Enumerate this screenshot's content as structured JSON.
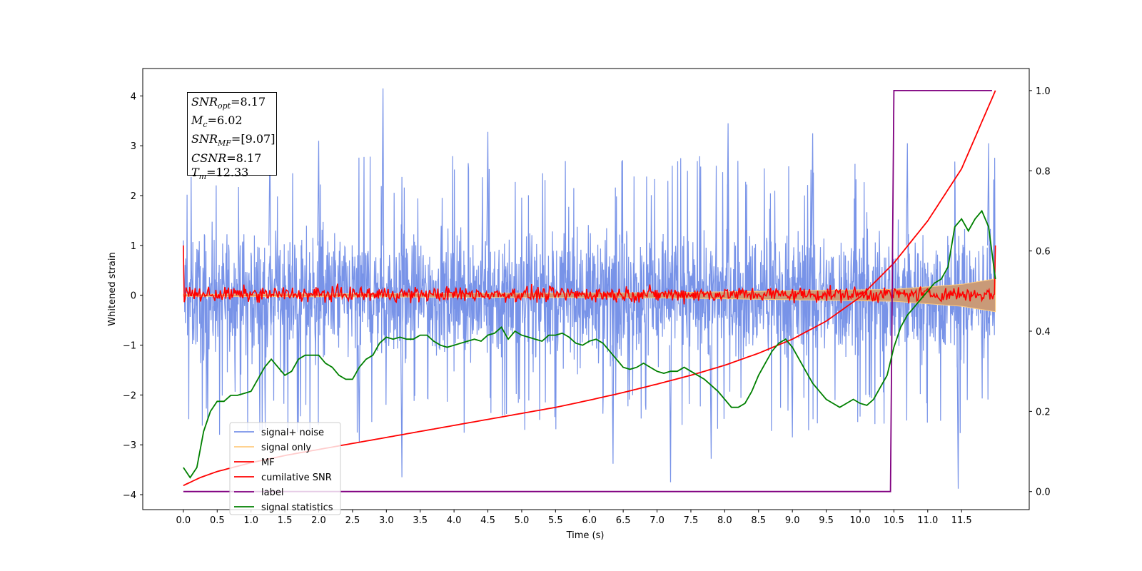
{
  "info_box": [
    {
      "sym": "SNR",
      "sub": "opt",
      "val": "=8.17"
    },
    {
      "sym": "M",
      "sub": "c",
      "val": "=6.02"
    },
    {
      "sym": "SNR",
      "sub": "MF",
      "val": "=[9.07]"
    },
    {
      "sym": "CSNR",
      "sub": "",
      "val": "=8.17"
    },
    {
      "sym": "T",
      "sub": "m",
      "val": "=12.33"
    }
  ],
  "chart_data": {
    "type": "line",
    "xlabel": "Time (s)",
    "ylabel": "Whitened strain",
    "xlim": [
      -0.6,
      12.5
    ],
    "ylim": [
      -4.3,
      4.55
    ],
    "y2lim": [
      -0.045,
      1.055
    ],
    "xticks": [
      "0.0",
      "0.5",
      "1.0",
      "1.5",
      "2.0",
      "2.5",
      "3.0",
      "3.5",
      "4.0",
      "4.5",
      "5.0",
      "5.5",
      "6.0",
      "6.5",
      "7.0",
      "7.5",
      "8.0",
      "8.5",
      "9.0",
      "9.5",
      "10.0",
      "10.5",
      "11.0",
      "11.5"
    ],
    "yticks": [
      "4",
      "3",
      "2",
      "1",
      "0",
      "−1",
      "−2",
      "−3",
      "−4"
    ],
    "y2ticks": [
      "1.0",
      "0.8",
      "0.6",
      "0.4",
      "0.2",
      "0.0"
    ],
    "colors": {
      "noise": "#7893e8",
      "signal": "#ffcc80",
      "signal_fill": "#c99a78",
      "mf": "#ff0000",
      "csnr": "#ff0000",
      "label": "#800080",
      "stats": "#008000"
    },
    "legend": {
      "position": "lower-left",
      "entries": [
        "signal+ noise",
        "signal only",
        "MF",
        "cumilative SNR",
        "label",
        "signal statistics"
      ]
    },
    "series": [
      {
        "name": "signal+ noise",
        "axis": "left",
        "t_start": 0.0,
        "t_end": 12.0,
        "typical_range": [
          -1.5,
          1.5
        ],
        "peaks": [
          [
            2.95,
            4.15
          ],
          [
            1.28,
            3.1
          ],
          [
            2.0,
            3.1
          ],
          [
            4.5,
            3.28
          ],
          [
            8.05,
            3.45
          ],
          [
            9.3,
            3.25
          ],
          [
            10.7,
            3.05
          ],
          [
            11.9,
            3.05
          ]
        ],
        "troughs": [
          [
            3.23,
            -3.65
          ],
          [
            6.35,
            -3.38
          ],
          [
            7.2,
            -3.75
          ],
          [
            7.8,
            -3.28
          ],
          [
            11.45,
            -3.88
          ],
          [
            2.6,
            -2.95
          ],
          [
            9.0,
            -2.85
          ]
        ]
      },
      {
        "name": "signal only",
        "axis": "left",
        "envelope": [
          [
            0.0,
            0.02
          ],
          [
            7.0,
            0.05
          ],
          [
            10.5,
            0.12
          ],
          [
            11.5,
            0.22
          ],
          [
            12.0,
            0.33
          ]
        ]
      },
      {
        "name": "MF",
        "axis": "left",
        "t_start": 0.0,
        "t_end": 12.0,
        "start_value": 1.0,
        "end_value": 1.0,
        "typical_range": [
          -0.2,
          0.3
        ]
      },
      {
        "name": "cumilative SNR",
        "axis": "right",
        "x": [
          0.0,
          0.25,
          0.5,
          1.0,
          1.5,
          2.0,
          2.5,
          3.0,
          3.5,
          4.0,
          4.5,
          5.0,
          5.5,
          6.0,
          6.5,
          7.0,
          7.5,
          8.0,
          8.5,
          9.0,
          9.5,
          10.0,
          10.5,
          11.0,
          11.5,
          12.0
        ],
        "y": [
          0.015,
          0.035,
          0.05,
          0.072,
          0.09,
          0.105,
          0.12,
          0.135,
          0.15,
          0.165,
          0.18,
          0.195,
          0.21,
          0.228,
          0.247,
          0.268,
          0.29,
          0.315,
          0.345,
          0.38,
          0.425,
          0.485,
          0.57,
          0.675,
          0.805,
          1.0
        ]
      },
      {
        "name": "label",
        "axis": "right",
        "x": [
          0.0,
          10.45,
          10.5,
          11.95
        ],
        "y": [
          0.0,
          0.0,
          1.0,
          1.0
        ]
      },
      {
        "name": "signal statistics",
        "axis": "right",
        "x": [
          0.0,
          0.1,
          0.2,
          0.3,
          0.4,
          0.5,
          0.6,
          0.7,
          0.8,
          0.9,
          1.0,
          1.1,
          1.2,
          1.3,
          1.4,
          1.5,
          1.6,
          1.7,
          1.8,
          1.9,
          2.0,
          2.1,
          2.2,
          2.3,
          2.4,
          2.5,
          2.6,
          2.7,
          2.8,
          2.9,
          3.0,
          3.1,
          3.2,
          3.3,
          3.4,
          3.5,
          3.6,
          3.7,
          3.8,
          3.9,
          4.0,
          4.1,
          4.2,
          4.3,
          4.4,
          4.5,
          4.6,
          4.7,
          4.8,
          4.9,
          5.0,
          5.1,
          5.2,
          5.3,
          5.4,
          5.5,
          5.6,
          5.7,
          5.8,
          5.9,
          6.0,
          6.1,
          6.2,
          6.3,
          6.4,
          6.5,
          6.6,
          6.7,
          6.8,
          6.9,
          7.0,
          7.1,
          7.2,
          7.3,
          7.4,
          7.5,
          7.6,
          7.7,
          7.8,
          7.9,
          8.0,
          8.1,
          8.2,
          8.3,
          8.4,
          8.5,
          8.6,
          8.7,
          8.8,
          8.9,
          9.0,
          9.1,
          9.2,
          9.3,
          9.4,
          9.5,
          9.6,
          9.7,
          9.8,
          9.9,
          10.0,
          10.1,
          10.2,
          10.3,
          10.4,
          10.5,
          10.6,
          10.7,
          10.8,
          10.9,
          11.0,
          11.1,
          11.2,
          11.3,
          11.4,
          11.5,
          11.6,
          11.7,
          11.8,
          11.9,
          12.0
        ],
        "y": [
          0.06,
          0.035,
          0.06,
          0.15,
          0.2,
          0.225,
          0.225,
          0.24,
          0.24,
          0.245,
          0.25,
          0.28,
          0.31,
          0.33,
          0.31,
          0.29,
          0.3,
          0.33,
          0.34,
          0.34,
          0.34,
          0.32,
          0.31,
          0.29,
          0.28,
          0.28,
          0.31,
          0.33,
          0.34,
          0.37,
          0.385,
          0.38,
          0.385,
          0.38,
          0.38,
          0.39,
          0.39,
          0.375,
          0.365,
          0.36,
          0.365,
          0.37,
          0.375,
          0.38,
          0.375,
          0.39,
          0.395,
          0.41,
          0.38,
          0.4,
          0.39,
          0.385,
          0.38,
          0.375,
          0.39,
          0.39,
          0.395,
          0.385,
          0.37,
          0.365,
          0.375,
          0.38,
          0.37,
          0.35,
          0.33,
          0.31,
          0.305,
          0.31,
          0.32,
          0.31,
          0.3,
          0.295,
          0.3,
          0.3,
          0.31,
          0.3,
          0.29,
          0.28,
          0.265,
          0.25,
          0.23,
          0.21,
          0.21,
          0.22,
          0.25,
          0.29,
          0.32,
          0.35,
          0.37,
          0.38,
          0.36,
          0.33,
          0.3,
          0.27,
          0.25,
          0.23,
          0.22,
          0.21,
          0.22,
          0.23,
          0.22,
          0.215,
          0.23,
          0.26,
          0.29,
          0.36,
          0.41,
          0.44,
          0.46,
          0.48,
          0.5,
          0.52,
          0.53,
          0.56,
          0.66,
          0.68,
          0.65,
          0.68,
          0.7,
          0.66,
          0.53
        ]
      }
    ]
  }
}
